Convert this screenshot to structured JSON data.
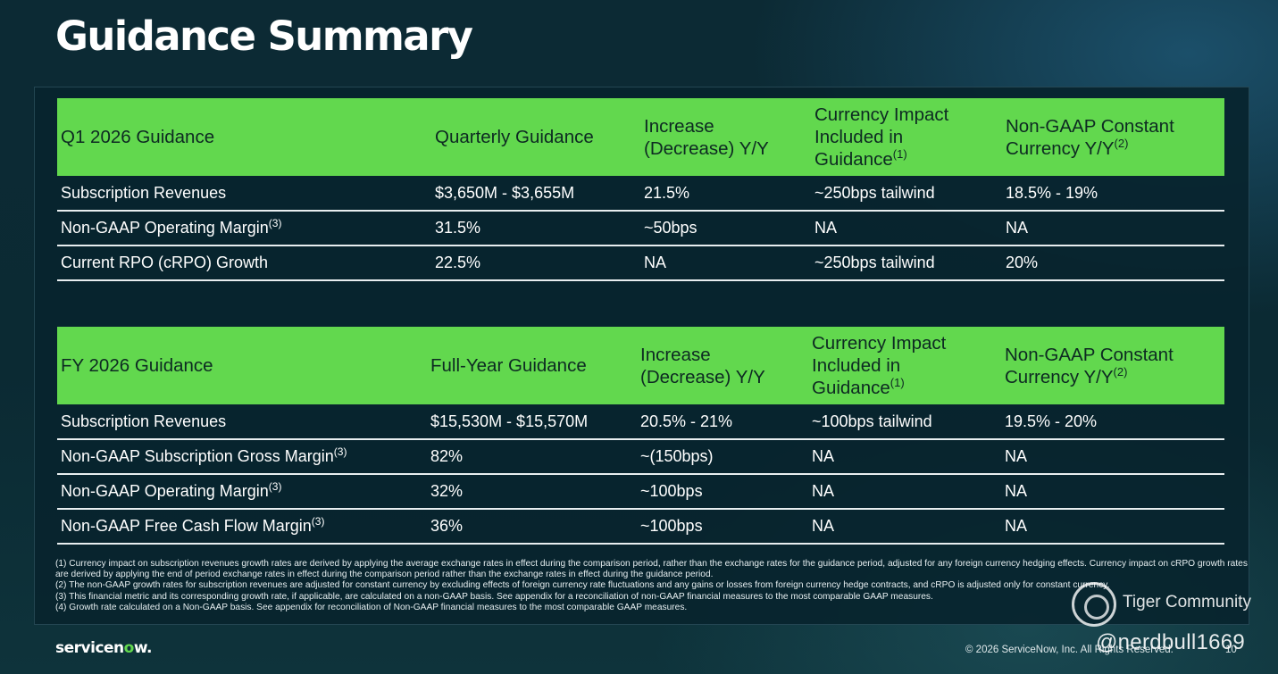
{
  "title": "Guidance Summary",
  "colors": {
    "header_green": "#62d84e",
    "background": "#0b2a33",
    "row_rule": "#e8eef0"
  },
  "q1_table": {
    "headers": [
      {
        "text": "Q1 2026 Guidance",
        "sup": ""
      },
      {
        "text": "Quarterly Guidance",
        "sup": ""
      },
      {
        "text": "Increase (Decrease) Y/Y",
        "sup": ""
      },
      {
        "text": "Currency Impact Included in Guidance",
        "sup": "(1)"
      },
      {
        "text": "Non-GAAP Constant Currency Y/Y",
        "sup": "(2)"
      }
    ],
    "rows": [
      {
        "metric": "Subscription Revenues",
        "sup": "",
        "cells": [
          "$3,650M - $3,655M",
          "21.5%",
          "~250bps tailwind",
          "18.5% - 19%"
        ]
      },
      {
        "metric": "Non-GAAP Operating Margin",
        "sup": "(3)",
        "cells": [
          "31.5%",
          "~50bps",
          "NA",
          "NA"
        ]
      },
      {
        "metric": "Current RPO (cRPO) Growth",
        "sup": "",
        "cells": [
          "22.5%",
          "NA",
          "~250bps tailwind",
          "20%"
        ]
      }
    ]
  },
  "fy_table": {
    "headers": [
      {
        "text": "FY 2026 Guidance",
        "sup": ""
      },
      {
        "text": "Full-Year Guidance",
        "sup": ""
      },
      {
        "text": "Increase (Decrease) Y/Y",
        "sup": ""
      },
      {
        "text": "Currency Impact Included in Guidance",
        "sup": "(1)"
      },
      {
        "text": "Non-GAAP Constant Currency Y/Y",
        "sup": "(2)"
      }
    ],
    "rows": [
      {
        "metric": "Subscription Revenues",
        "sup": "",
        "cells": [
          "$15,530M - $15,570M",
          "20.5% - 21%",
          "~100bps tailwind",
          "19.5% - 20%"
        ]
      },
      {
        "metric": "Non-GAAP Subscription Gross Margin",
        "sup": "(3)",
        "cells": [
          "82%",
          "~(150bps)",
          "NA",
          "NA"
        ]
      },
      {
        "metric": "Non-GAAP Operating Margin",
        "sup": "(3)",
        "cells": [
          "32%",
          "~100bps",
          "NA",
          "NA"
        ]
      },
      {
        "metric": "Non-GAAP Free Cash Flow Margin",
        "sup": "(3)",
        "cells": [
          "36%",
          "~100bps",
          "NA",
          "NA"
        ]
      }
    ]
  },
  "footnotes": [
    "(1) Currency impact on subscription revenues growth rates are derived by applying the average exchange rates in effect during the comparison period, rather than the exchange rates for the guidance period, adjusted for any foreign currency hedging effects. Currency impact on cRPO growth rates are derived by applying the end of period exchange rates in effect during the comparison period rather than the exchange rates in effect during the guidance period.",
    "(2) The non-GAAP growth rates for subscription revenues are adjusted for constant currency by excluding effects of foreign currency rate fluctuations and any gains or losses from foreign currency hedge contracts, and cRPO is adjusted only for constant currency.",
    "(3) This financial metric and its corresponding growth rate, if applicable, are calculated on a non-GAAP basis. See appendix for a reconciliation of non-GAAP financial measures to the most comparable GAAP measures.",
    "(4) Growth rate calculated on a Non-GAAP basis. See appendix for reconciliation of Non-GAAP financial measures to the most comparable GAAP measures."
  ],
  "footer": {
    "logo_main": "servicen",
    "logo_o": "o",
    "logo_end": "w.",
    "copyright": "© 2026 ServiceNow, Inc. All Rights Reserved.",
    "page_number": "10"
  },
  "watermark": {
    "name": "Tiger Community",
    "handle": "@nerdbull1669",
    "icon": "tiger-community-logo-icon"
  }
}
